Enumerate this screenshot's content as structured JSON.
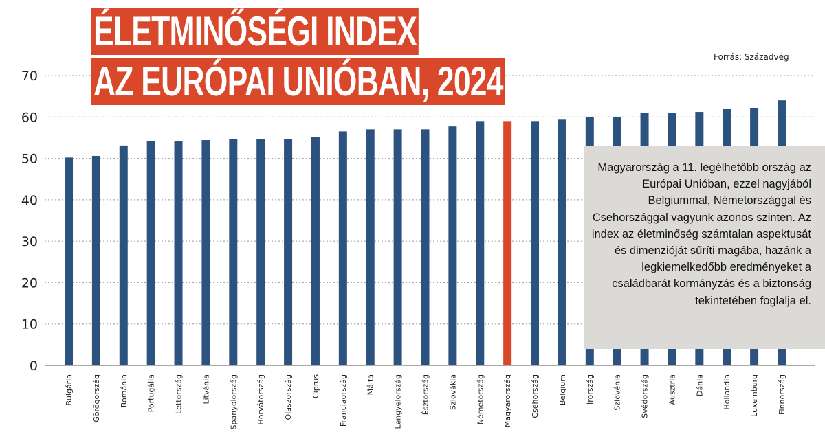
{
  "title_line1": "ÉLETMINŐSÉGI INDEX",
  "title_line2": "AZ EURÓPAI UNIÓBAN, 2024",
  "source": "Forrás: Századvég",
  "note": "Magyarország a 11. legélhetőbb ország az Európai Unióban, ezzel nagyjából Belgiummal, Német­országgal és Csehországgal vagyunk azonos szinten. Az index az élet­minőség számtalan aspektusát és dimenzióját sűríti magába, hazánk a legkiemelkedőbb eredményeket a családbarát kormányzás és a biz­tonság tekintetében foglalja el.",
  "colors": {
    "bar": "#2c527f",
    "highlight": "#d9482b",
    "title_bg": "#d9482b",
    "note_bg": "#dcdad6"
  },
  "chart_data": {
    "type": "bar",
    "title": "ÉLETMINŐSÉGI INDEX AZ EURÓPAI UNIÓBAN, 2024",
    "ylim": [
      0,
      70
    ],
    "yticks": [
      0,
      10,
      20,
      30,
      40,
      50,
      60,
      70
    ],
    "grid": "horizontal dotted",
    "highlight": "Magyarország",
    "categories": [
      "Bulgária",
      "Görögország",
      "Románia",
      "Portugália",
      "Lettország",
      "Litvánia",
      "Spanyolország",
      "Horvátország",
      "Olaszország",
      "Ciprus",
      "Franciaország",
      "Málta",
      "Lengyelország",
      "Észtország",
      "Szlovákia",
      "Németország",
      "Magyarország",
      "Csehország",
      "Belgium",
      "Írország",
      "Szlovénia",
      "Svédország",
      "Ausztria",
      "Dánia",
      "Hollandia",
      "Luxemburg",
      "Finnország"
    ],
    "values": [
      50.2,
      50.6,
      53.1,
      54.2,
      54.2,
      54.4,
      54.6,
      54.7,
      54.7,
      55.1,
      56.5,
      57.0,
      57.0,
      57.0,
      57.7,
      59.0,
      59.0,
      59.0,
      59.5,
      59.9,
      59.9,
      61.0,
      61.0,
      61.2,
      62.0,
      62.2,
      64.0
    ]
  }
}
